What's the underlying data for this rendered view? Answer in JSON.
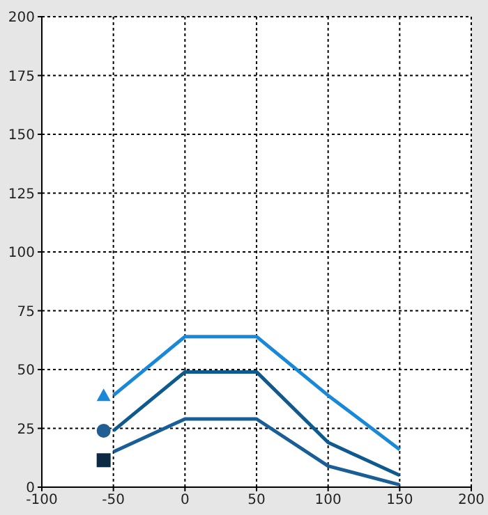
{
  "chart_data": {
    "type": "line",
    "x": [
      -50,
      0,
      50,
      100,
      150
    ],
    "series": [
      {
        "color": "#1a88d8",
        "values": [
          39,
          64,
          64,
          39,
          16
        ]
      },
      {
        "color": "#0e5a8e",
        "values": [
          24,
          49,
          49,
          19,
          5
        ]
      },
      {
        "color": "#1a5e98",
        "values": [
          15,
          29,
          29,
          9,
          1
        ]
      }
    ],
    "xlim": [
      -100,
      200
    ],
    "xticks": [
      -100,
      -50,
      0,
      50,
      100,
      150,
      200
    ],
    "ylim": [
      0,
      200
    ],
    "yticks": [
      0,
      25,
      50,
      75,
      100,
      125,
      150,
      175,
      200
    ],
    "grid": true,
    "marker": "none",
    "line_style": "solid"
  }
}
